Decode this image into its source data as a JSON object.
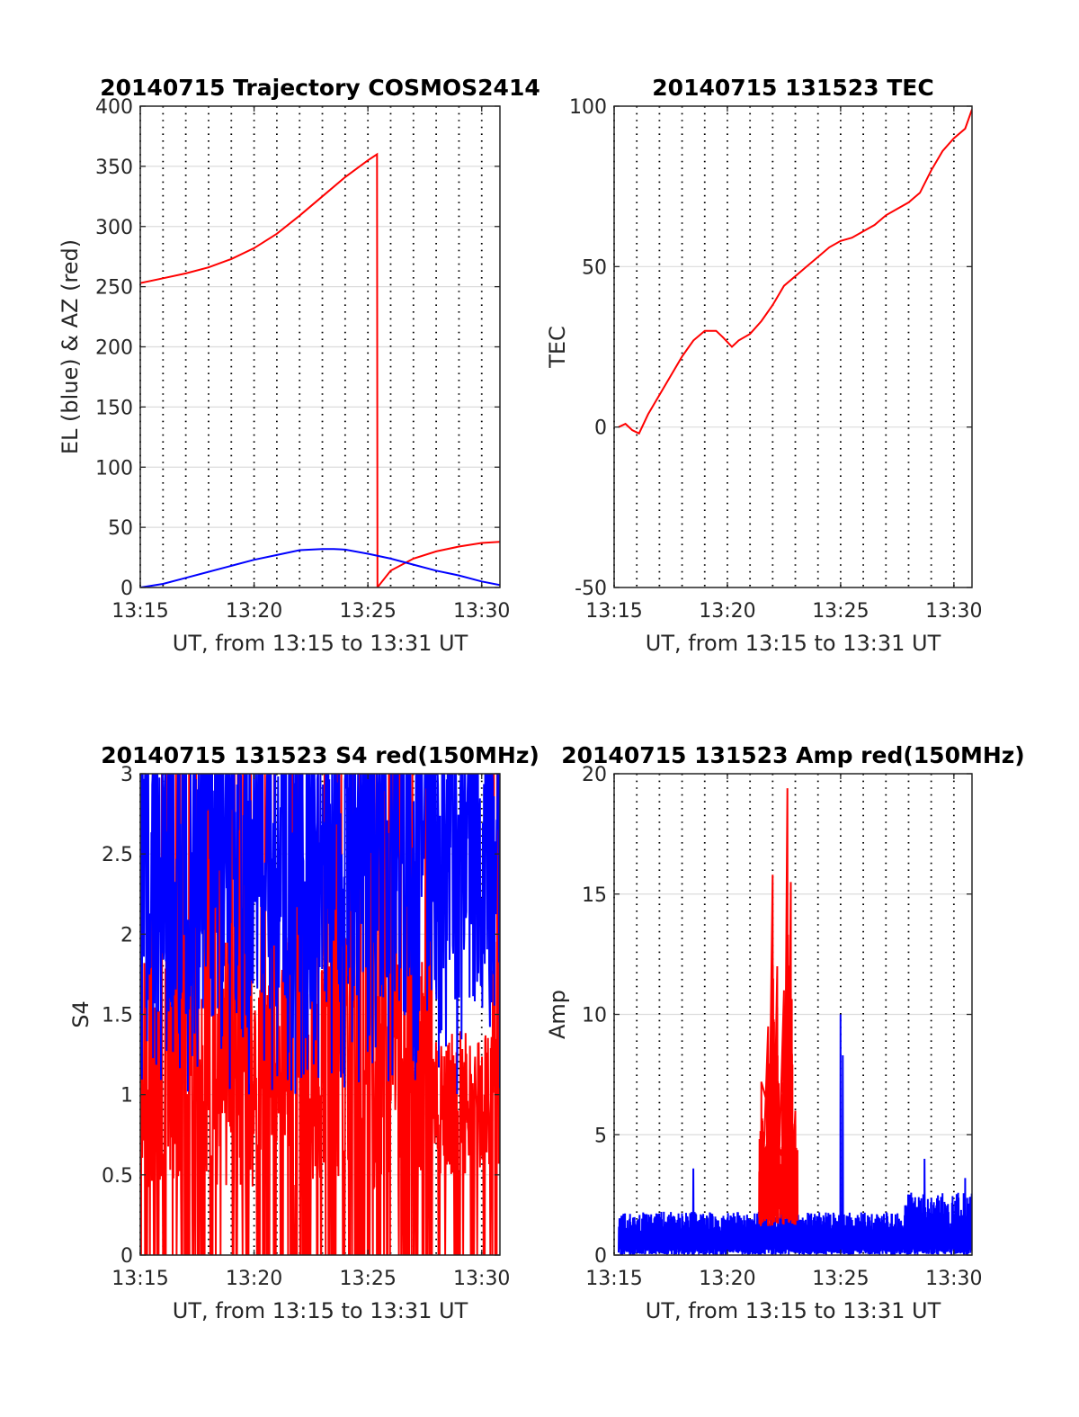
{
  "chart_data": [
    {
      "id": "trajectory",
      "type": "line",
      "title": "20140715 Trajectory COSMOS2414",
      "xlabel": "UT, from 13:15 to 13:31 UT",
      "ylabel": "EL (blue) & AZ (red)",
      "x_unit": "minutes from 13:00 UT",
      "xlim": [
        15,
        30.8
      ],
      "ylim": [
        0,
        400
      ],
      "yticks": [
        0,
        50,
        100,
        150,
        200,
        250,
        300,
        350,
        400
      ],
      "ytick_labels": [
        "0",
        "50",
        "100",
        "150",
        "200",
        "250",
        "300",
        "350",
        "400"
      ],
      "xticks": [
        15,
        20,
        25,
        30
      ],
      "xtick_labels": [
        "13:15",
        "13:20",
        "13:25",
        "13:30"
      ],
      "grid": {
        "horizontal_solid": true,
        "vertical_dotted_every_min": 1
      },
      "series": [
        {
          "color": "#ff0000",
          "x": [
            15,
            16,
            17,
            18,
            19,
            20,
            21,
            22,
            23,
            24,
            25,
            25.4,
            25.42,
            25.5,
            26,
            27,
            28,
            29,
            30,
            30.8
          ],
          "y": [
            253,
            257,
            261,
            266,
            273,
            282,
            294,
            309,
            325,
            341,
            355,
            360,
            0,
            2,
            14,
            24,
            30,
            34,
            37,
            38
          ]
        },
        {
          "color": "#0000ff",
          "x": [
            15,
            16,
            17,
            18,
            19,
            20,
            21,
            22,
            23,
            23.5,
            24,
            25,
            26,
            27,
            28,
            29,
            30,
            30.8
          ],
          "y": [
            0,
            3,
            8,
            13,
            18,
            23,
            27,
            31,
            32,
            32,
            31.5,
            28,
            24,
            19,
            14,
            10,
            5,
            2
          ]
        }
      ]
    },
    {
      "id": "tec",
      "type": "line",
      "title": "20140715 131523 TEC",
      "xlabel": "UT, from 13:15 to 13:31 UT",
      "ylabel": "TEC",
      "x_unit": "minutes from 13:00 UT",
      "xlim": [
        15,
        30.8
      ],
      "ylim": [
        -50,
        100
      ],
      "yticks": [
        -50,
        0,
        50,
        100
      ],
      "ytick_labels": [
        "-50",
        "0",
        "50",
        "100"
      ],
      "xticks": [
        15,
        20,
        25,
        30
      ],
      "xtick_labels": [
        "13:15",
        "13:20",
        "13:25",
        "13:30"
      ],
      "grid": {
        "horizontal_solid": true,
        "vertical_dotted_every_min": 1
      },
      "series": [
        {
          "color": "#ff0000",
          "x": [
            15.2,
            15.5,
            15.8,
            16.1,
            16.5,
            17,
            17.5,
            18,
            18.5,
            19,
            19.5,
            19.8,
            20.2,
            20.5,
            21,
            21.5,
            22,
            22.5,
            23,
            23.5,
            24,
            24.5,
            25,
            25.5,
            26,
            26.5,
            27,
            27.5,
            28,
            28.5,
            29,
            29.5,
            30,
            30.5,
            30.8
          ],
          "y": [
            0,
            1,
            -1,
            -2,
            4,
            10,
            16,
            22,
            27,
            30,
            30,
            28,
            25,
            27,
            29,
            33,
            38,
            44,
            47,
            50,
            53,
            56,
            58,
            59,
            61,
            63,
            66,
            68,
            70,
            73,
            80,
            86,
            90,
            93,
            99
          ]
        }
      ]
    },
    {
      "id": "s4",
      "type": "line",
      "title": "20140715 131523 S4 red(150MHz)",
      "xlabel": "UT, from 13:15 to 13:31 UT",
      "ylabel": "S4",
      "x_unit": "minutes from 13:00 UT",
      "xlim": [
        15,
        30.8
      ],
      "ylim": [
        0,
        3
      ],
      "yticks": [
        0,
        0.5,
        1,
        1.5,
        2,
        2.5,
        3
      ],
      "ytick_labels": [
        "0",
        "0.5",
        "1",
        "1.5",
        "2",
        "2.5",
        "3"
      ],
      "xticks": [
        15,
        20,
        25,
        30
      ],
      "xtick_labels": [
        "13:15",
        "13:20",
        "13:25",
        "13:30"
      ],
      "grid": {
        "horizontal_solid": true,
        "vertical_dotted_every_min": 1
      },
      "series": [
        {
          "color": "#ff0000",
          "noise": {
            "x_start": 15,
            "x_end": 30.8,
            "min": 0,
            "max": 3,
            "typical": 1.1
          }
        },
        {
          "color": "#0000ff",
          "noise": {
            "x_start": 15,
            "x_end": 30.8,
            "min": 1.0,
            "max": 3,
            "typical": 2.3
          }
        }
      ]
    },
    {
      "id": "amp",
      "type": "line",
      "title": "20140715 131523 Amp red(150MHz)",
      "xlabel": "UT, from 13:15 to 13:31 UT",
      "ylabel": "Amp",
      "x_unit": "minutes from 13:00 UT",
      "xlim": [
        15,
        30.8
      ],
      "ylim": [
        0,
        20
      ],
      "yticks": [
        0,
        5,
        10,
        15,
        20
      ],
      "ytick_labels": [
        "0",
        "5",
        "10",
        "15",
        "20"
      ],
      "xticks": [
        15,
        20,
        25,
        30
      ],
      "xtick_labels": [
        "13:15",
        "13:20",
        "13:25",
        "13:30"
      ],
      "grid": {
        "horizontal_solid": true,
        "vertical_dotted_every_min": 1
      },
      "series": [
        {
          "color": "#0000ff",
          "noise": {
            "x_start": 15.2,
            "x_end": 30.8,
            "min": 0,
            "max": 1.8
          },
          "spikes": [
            {
              "x": 18.5,
              "y": 3.6
            },
            {
              "x": 25.0,
              "y": 10.0
            },
            {
              "x": 25.1,
              "y": 8.3
            },
            {
              "x": 28.7,
              "y": 4.0
            },
            {
              "x": 30.5,
              "y": 3.2
            }
          ]
        },
        {
          "color": "#ff0000",
          "burst": {
            "x_start": 21.4,
            "x_end": 23.1
          },
          "peaks": [
            {
              "x": 21.5,
              "y": 7.2
            },
            {
              "x": 21.8,
              "y": 9.5
            },
            {
              "x": 22.0,
              "y": 15.8
            },
            {
              "x": 22.2,
              "y": 12.0
            },
            {
              "x": 22.5,
              "y": 11.0
            },
            {
              "x": 22.65,
              "y": 19.4
            },
            {
              "x": 22.8,
              "y": 15.5
            },
            {
              "x": 23.0,
              "y": 6.0
            }
          ]
        }
      ]
    }
  ]
}
